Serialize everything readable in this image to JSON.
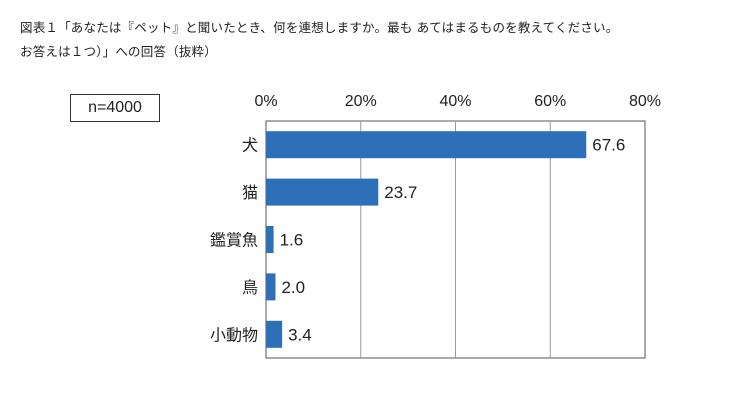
{
  "caption": {
    "line1": "図表１「あなたは『ペット』と聞いたとき、何を連想しますか。最も あてはまるものを教えてください。",
    "line2": "お答えは１つ）」への回答（抜粋）"
  },
  "sample_size": "n=4000",
  "chart_data": {
    "type": "bar",
    "orientation": "horizontal",
    "categories": [
      "犬",
      "猫",
      "鑑賞魚",
      "鳥",
      "小動物"
    ],
    "values": [
      67.6,
      23.7,
      1.6,
      2.0,
      3.4
    ],
    "value_labels": [
      "67.6",
      "23.7",
      "1.6",
      "2.0",
      "3.4"
    ],
    "xlim": [
      0,
      80
    ],
    "xticks": [
      "0%",
      "20%",
      "40%",
      "60%",
      "80%"
    ],
    "xtick_values": [
      0,
      20,
      40,
      60,
      80
    ],
    "grid": true,
    "axis_position": "top",
    "bar_color": "#2e70b8"
  }
}
